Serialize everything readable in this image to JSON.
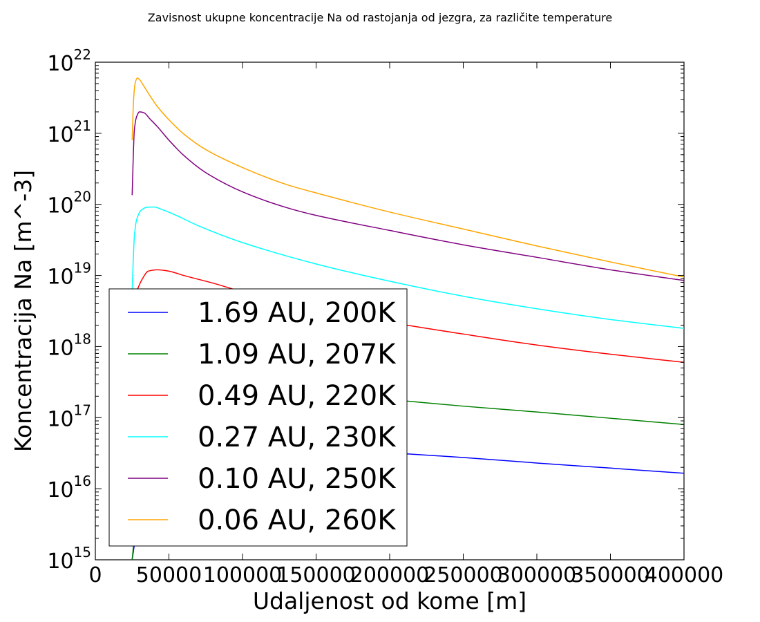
{
  "chart_data": {
    "type": "line",
    "title": "Zavisnost ukupne koncentracije Na od rastojanja od jezgra, za različite temperature",
    "xlabel": "Udaljenost od kome [m]",
    "ylabel": "Koncentracija Na [m^-3]",
    "xlim": [
      0,
      400000
    ],
    "ylim": [
      1000000000000000.0,
      1e+22
    ],
    "yscale": "log",
    "xticks": [
      0,
      50000,
      100000,
      150000,
      200000,
      250000,
      300000,
      350000,
      400000
    ],
    "xtick_labels": [
      "0",
      "50000",
      "100000",
      "150000",
      "200000",
      "250000",
      "300000",
      "350000",
      "400000"
    ],
    "yticks": [
      1000000000000000.0,
      1e+16,
      1e+17,
      1e+18,
      1e+19,
      1e+20,
      1e+21,
      1e+22
    ],
    "ytick_labels": [
      {
        "base": "10",
        "exp": "15"
      },
      {
        "base": "10",
        "exp": "16"
      },
      {
        "base": "10",
        "exp": "17"
      },
      {
        "base": "10",
        "exp": "18"
      },
      {
        "base": "10",
        "exp": "19"
      },
      {
        "base": "10",
        "exp": "20"
      },
      {
        "base": "10",
        "exp": "21"
      },
      {
        "base": "10",
        "exp": "22"
      }
    ],
    "grid": false,
    "legend_position": "lower-left",
    "series": [
      {
        "name": "1.69 AU, 200K",
        "color": "#0000ff",
        "x": [
          25000,
          35000,
          50000,
          100000,
          150000,
          200000,
          250000,
          300000,
          350000,
          400000
        ],
        "y": [
          1000000000000000.0,
          2e+16,
          4.6e+16,
          4.2e+16,
          3.7e+16,
          3.2e+16,
          2.75e+16,
          2.3e+16,
          1.95e+16,
          1.65e+16
        ]
      },
      {
        "name": "1.09 AU, 207K",
        "color": "#008000",
        "x": [
          25000,
          35000,
          50000,
          100000,
          150000,
          200000,
          250000,
          300000,
          350000,
          400000
        ],
        "y": [
          1000000000000000.0,
          1.1e+17,
          3.5e+17,
          2.8e+17,
          2.2e+17,
          1.8e+17,
          1.45e+17,
          1.2e+17,
          9.8e+16,
          8e+16
        ]
      },
      {
        "name": "0.49 AU, 220K",
        "color": "#ff0000",
        "x": [
          28000,
          32000,
          36000,
          42000,
          50000,
          60000,
          80000,
          100000,
          150000,
          200000,
          250000,
          300000,
          350000,
          400000
        ],
        "y": [
          6e+18,
          9e+18,
          1.15e+19,
          1.2e+19,
          1.15e+19,
          1e+19,
          7.8e+18,
          5.9e+18,
          3.5e+18,
          2.2e+18,
          1.5e+18,
          1.05e+18,
          7.8e+17,
          6e+17
        ]
      },
      {
        "name": "0.27 AU, 230K",
        "color": "#00ffff",
        "x": [
          25000,
          26500,
          28000,
          31000,
          35000,
          40000,
          45000,
          55000,
          70000,
          100000,
          150000,
          200000,
          250000,
          300000,
          350000,
          400000
        ],
        "y": [
          6e+18,
          3.5e+19,
          6e+19,
          8.2e+19,
          9.1e+19,
          9.2e+19,
          8.5e+19,
          7e+19,
          5e+19,
          2.9e+19,
          1.45e+19,
          8.3e+18,
          5.1e+18,
          3.4e+18,
          2.4e+18,
          1.8e+18
        ]
      },
      {
        "name": "0.10 AU, 250K",
        "color": "#800080",
        "x": [
          25000,
          26500,
          28000,
          30000,
          33000,
          37000,
          42000,
          50000,
          60000,
          75000,
          100000,
          130000,
          150000,
          200000,
          250000,
          300000,
          350000,
          400000
        ],
        "y": [
          1.35e+20,
          1.1e+21,
          1.7e+21,
          2e+21,
          1.95e+21,
          1.6e+21,
          1.25e+21,
          8e+20,
          4.9e+20,
          2.8e+20,
          1.5e+20,
          9e+19,
          7e+19,
          4.3e+19,
          2.7e+19,
          1.8e+19,
          1.2e+19,
          8.5e+18
        ]
      },
      {
        "name": "0.06 AU, 260K",
        "color": "#ffa500",
        "x": [
          25000,
          26000,
          27000,
          28500,
          30000,
          33000,
          37000,
          42000,
          50000,
          60000,
          75000,
          100000,
          130000,
          150000,
          200000,
          250000,
          300000,
          350000,
          400000
        ],
        "y": [
          8e+20,
          3e+21,
          5e+21,
          6e+21,
          5.7e+21,
          4.6e+21,
          3.4e+21,
          2.4e+21,
          1.55e+21,
          9.8e+20,
          5.9e+20,
          3.3e+20,
          1.9e+20,
          1.45e+20,
          7.8e+19,
          4.5e+19,
          2.6e+19,
          1.55e+19,
          9.5e+18
        ]
      }
    ]
  }
}
